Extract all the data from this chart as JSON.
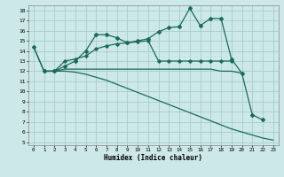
{
  "xlabel": "Humidex (Indice chaleur)",
  "bg_color": "#cce8e8",
  "grid_color": "#aacccc",
  "line_color": "#1a6b5a",
  "xlim": [
    -0.5,
    23.5
  ],
  "ylim": [
    4.7,
    18.5
  ],
  "yticks": [
    5,
    6,
    7,
    8,
    9,
    10,
    11,
    12,
    13,
    14,
    15,
    16,
    17,
    18
  ],
  "xticks": [
    0,
    1,
    2,
    3,
    4,
    5,
    6,
    7,
    8,
    9,
    10,
    11,
    12,
    13,
    14,
    15,
    16,
    17,
    18,
    19,
    20,
    21,
    22,
    23
  ],
  "line1_x": [
    0,
    1,
    2,
    3,
    4,
    5,
    6,
    7,
    8,
    9,
    10,
    11,
    12,
    13,
    14,
    15,
    16,
    17,
    18,
    19,
    20,
    21,
    22
  ],
  "line1_y": [
    14.4,
    12.0,
    12.0,
    12.5,
    13.0,
    14.0,
    15.6,
    15.6,
    15.3,
    14.8,
    15.0,
    15.2,
    15.9,
    16.3,
    16.4,
    18.2,
    16.5,
    17.2,
    17.2,
    13.2,
    11.8,
    7.7,
    7.2
  ],
  "line2_x": [
    1,
    2,
    3,
    4,
    5,
    6,
    7,
    8,
    9,
    10,
    11,
    12,
    13,
    14,
    15,
    16,
    17,
    18,
    19
  ],
  "line2_y": [
    12.0,
    12.0,
    13.0,
    13.2,
    13.5,
    14.2,
    14.5,
    14.7,
    14.8,
    14.9,
    15.0,
    13.0,
    13.0,
    13.0,
    13.0,
    13.0,
    13.0,
    13.0,
    13.0
  ],
  "line3_x": [
    1,
    2,
    3,
    4,
    5,
    6,
    7,
    8,
    9,
    10,
    11,
    12,
    13,
    14,
    15,
    16,
    17,
    18,
    19,
    20
  ],
  "line3_y": [
    12.0,
    12.0,
    12.2,
    12.2,
    12.2,
    12.2,
    12.2,
    12.2,
    12.2,
    12.2,
    12.2,
    12.2,
    12.2,
    12.2,
    12.2,
    12.2,
    12.2,
    12.0,
    12.0,
    11.8
  ],
  "line4_x": [
    0,
    1,
    2,
    3,
    4,
    5,
    6,
    7,
    8,
    9,
    10,
    11,
    12,
    13,
    14,
    15,
    16,
    17,
    18,
    19,
    20,
    21,
    22,
    23
  ],
  "line4_y": [
    14.4,
    12.0,
    12.0,
    12.0,
    11.9,
    11.7,
    11.4,
    11.1,
    10.7,
    10.3,
    9.9,
    9.5,
    9.1,
    8.7,
    8.3,
    7.9,
    7.5,
    7.1,
    6.7,
    6.3,
    6.0,
    5.7,
    5.4,
    5.2
  ]
}
